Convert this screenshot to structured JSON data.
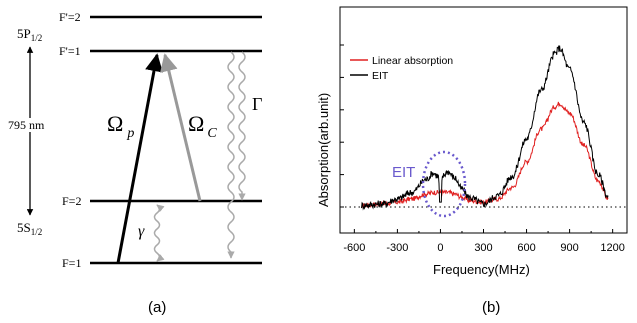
{
  "panel_a": {
    "caption": "(a)",
    "levels": {
      "f_prime_2": "F'=2",
      "f_prime_1": "F'=1",
      "f2": "F=2",
      "f1": "F=1"
    },
    "excited_state": {
      "main": "5P",
      "sub": "1/2"
    },
    "ground_state": {
      "main": "5S",
      "sub": "1/2"
    },
    "wavelength": "795 nm",
    "omega_p": {
      "symbol": "Ω",
      "sub": "p"
    },
    "omega_c": {
      "symbol": "Ω",
      "sub": "C"
    },
    "gamma_big": "Γ",
    "gamma_small": "γ"
  },
  "panel_b": {
    "caption": "(b)",
    "annotation": "EIT",
    "colors": {
      "linear": "#e02020",
      "eit": "#000000",
      "ellipse": "#6a5acd"
    },
    "chart_data": {
      "type": "line",
      "xlabel": "Frequency(MHz)",
      "ylabel": "Absorption(arb.unit)",
      "xlim": [
        -700,
        1300
      ],
      "ylim": [
        0,
        1
      ],
      "xticks": [
        "-600",
        "-300",
        "0",
        "300",
        "600",
        "900",
        "1200"
      ],
      "legend_position": "top-left",
      "baseline": "dotted",
      "series": [
        {
          "name": "Linear absorption",
          "color": "#e02020",
          "x": [
            -550,
            -400,
            -300,
            -200,
            -100,
            -50,
            0,
            50,
            100,
            150,
            200,
            300,
            400,
            500,
            600,
            700,
            800,
            830,
            900,
            1000,
            1100,
            1170
          ],
          "y": [
            0.01,
            0.02,
            0.03,
            0.05,
            0.08,
            0.09,
            0.09,
            0.09,
            0.08,
            0.06,
            0.04,
            0.03,
            0.05,
            0.12,
            0.28,
            0.48,
            0.62,
            0.64,
            0.58,
            0.38,
            0.16,
            0.05
          ]
        },
        {
          "name": "EIT",
          "color": "#000000",
          "x": [
            -550,
            -400,
            -300,
            -200,
            -100,
            -50,
            -15,
            0,
            15,
            50,
            100,
            150,
            200,
            300,
            400,
            500,
            600,
            700,
            800,
            830,
            900,
            1000,
            1100,
            1170
          ],
          "y": [
            0.01,
            0.02,
            0.05,
            0.09,
            0.17,
            0.21,
            0.19,
            0.03,
            0.19,
            0.22,
            0.18,
            0.11,
            0.06,
            0.02,
            0.07,
            0.19,
            0.42,
            0.72,
            0.95,
            0.98,
            0.85,
            0.52,
            0.2,
            0.06
          ]
        }
      ]
    }
  }
}
